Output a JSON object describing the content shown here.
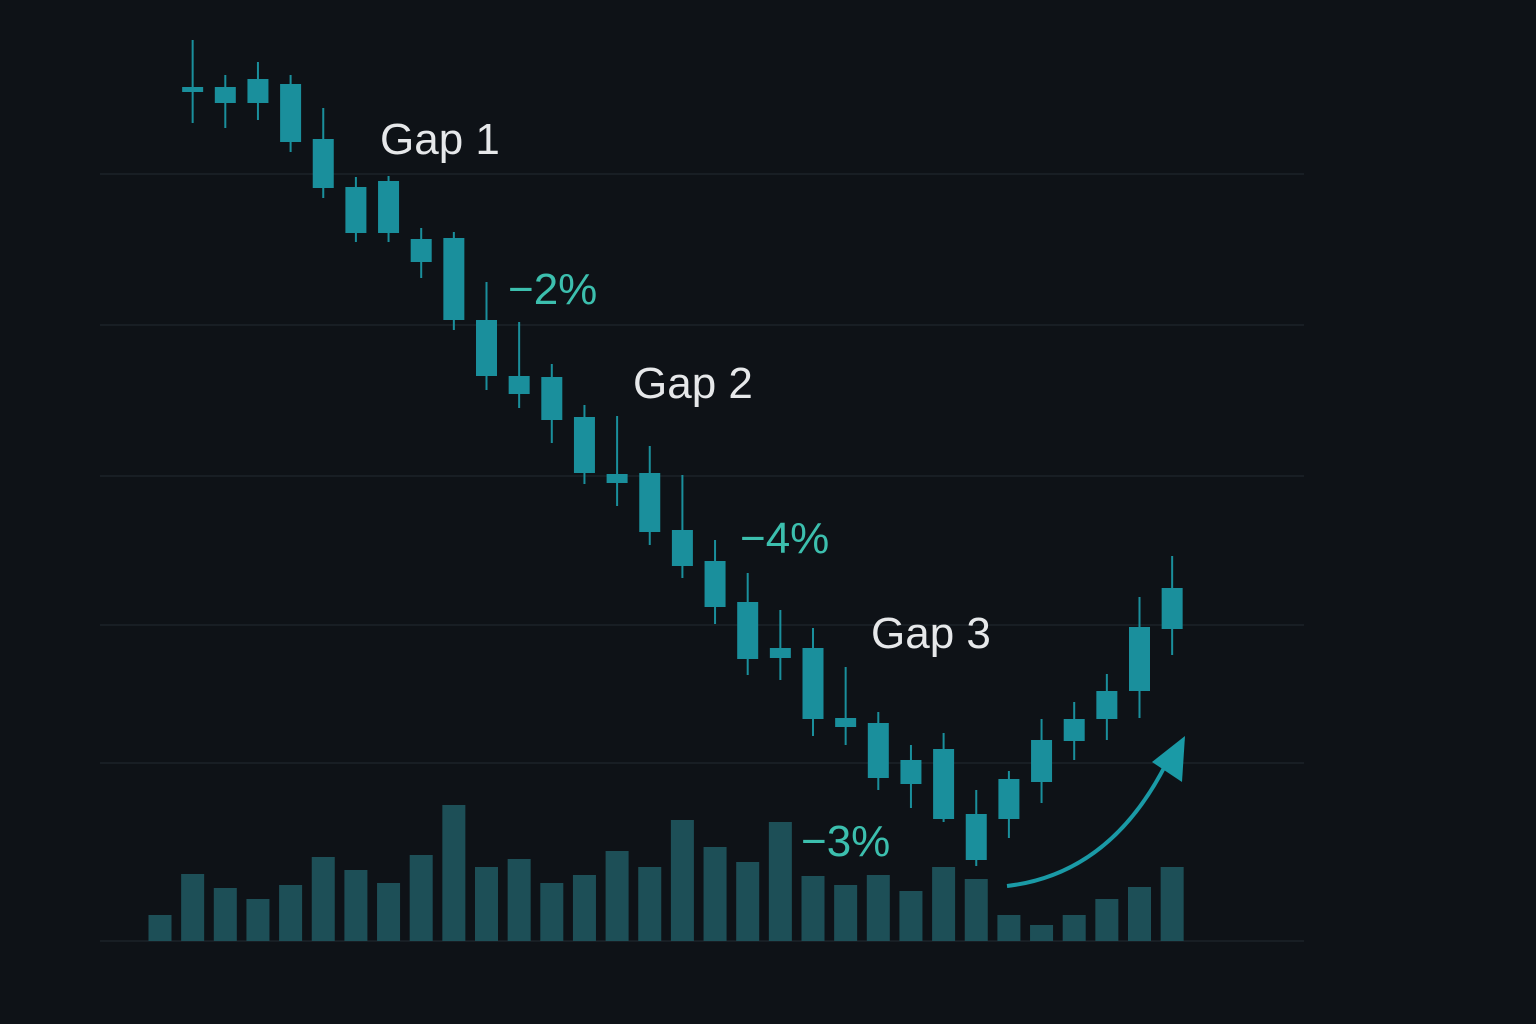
{
  "chart_data": {
    "type": "candlestick",
    "annotations": [
      "Gap 1",
      "−2%",
      "Gap 2",
      "−4%",
      "Gap 3",
      "−3%"
    ],
    "open": [
      null,
      937,
      937,
      945,
      940,
      885,
      837,
      843,
      785,
      786,
      704,
      648,
      647,
      607,
      550,
      551,
      494,
      463,
      422,
      376,
      376,
      306,
      301,
      264,
      275,
      164,
      205,
      242,
      283,
      305,
      333,
      395
    ],
    "high": [
      null,
      984,
      949,
      962,
      949,
      916,
      847,
      848,
      796,
      792,
      742,
      702,
      660,
      619,
      608,
      578,
      549,
      484,
      451,
      414,
      396,
      357,
      312,
      279,
      291,
      234,
      253,
      305,
      322,
      350,
      427,
      468
    ],
    "low": [
      null,
      901,
      896,
      904,
      872,
      826,
      782,
      782,
      746,
      694,
      634,
      616,
      581,
      540,
      518,
      479,
      446,
      400,
      349,
      344,
      288,
      279,
      234,
      216,
      202,
      158,
      186,
      221,
      264,
      284,
      306,
      369
    ],
    "close": [
      null,
      932,
      921,
      921,
      882,
      836,
      791,
      791,
      762,
      704,
      648,
      630,
      604,
      551,
      541,
      492,
      458,
      417,
      365,
      366,
      305,
      297,
      246,
      240,
      205,
      210,
      245,
      284,
      305,
      333,
      397,
      436
    ],
    "volume": [
      26,
      67,
      53,
      42,
      56,
      84,
      71,
      58,
      86,
      136,
      74,
      82,
      58,
      66,
      90,
      74,
      121,
      94,
      79,
      119,
      65,
      56,
      66,
      50,
      74,
      62,
      26,
      16,
      26,
      42,
      54,
      74
    ],
    "candle_color": "#1a8f9c",
    "volume_color": "#1d4f57",
    "ylim": [
      0,
      1000
    ],
    "yticks": [
      850,
      699,
      548,
      399,
      261,
      83
    ],
    "volume_lim": [
      0,
      400
    ],
    "grid": true
  }
}
